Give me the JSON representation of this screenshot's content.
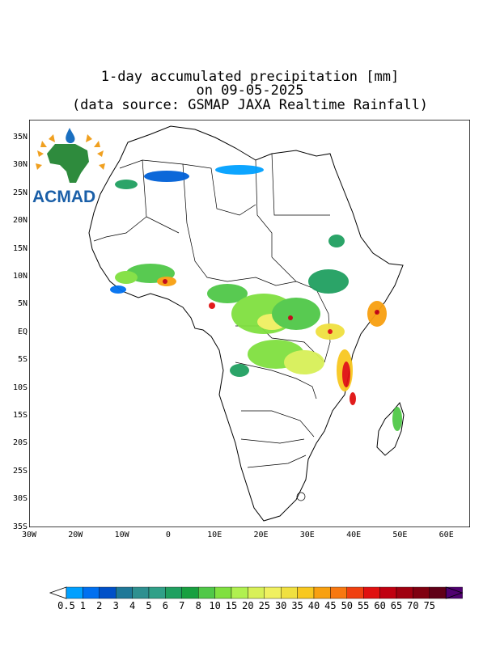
{
  "title": {
    "line1": "1-day accumulated precipitation [mm]",
    "line2": "on 09-05-2025",
    "line3": "(data source: GSMAP JAXA Realtime Rainfall)"
  },
  "logo": {
    "text": "ACMAD",
    "colors": {
      "text": "#1a5fa8",
      "continent": "#2e8b3d",
      "sun": "#f0a020",
      "drop": "#1a6fc0"
    }
  },
  "axes": {
    "lat_labels": [
      "35N",
      "30N",
      "25N",
      "20N",
      "15N",
      "10N",
      "5N",
      "EQ",
      "5S",
      "10S",
      "15S",
      "20S",
      "25S",
      "30S",
      "35S"
    ],
    "lon_labels": [
      "30W",
      "20W",
      "10W",
      "0",
      "10E",
      "20E",
      "30E",
      "40E",
      "50E",
      "60E"
    ]
  },
  "colorbar": {
    "labels": [
      "0.5",
      "1",
      "2",
      "3",
      "4",
      "5",
      "6",
      "7",
      "8",
      "10",
      "15",
      "20",
      "25",
      "30",
      "35",
      "40",
      "45",
      "50",
      "55",
      "60",
      "65",
      "70",
      "75"
    ],
    "colors": [
      "#00a0ff",
      "#0070f0",
      "#0050c8",
      "#1e7898",
      "#2e9090",
      "#30a088",
      "#20a060",
      "#18a040",
      "#50c848",
      "#80e040",
      "#b0f050",
      "#d8f058",
      "#f0f060",
      "#f0e040",
      "#f8c820",
      "#f8a010",
      "#f87810",
      "#f04010",
      "#e01010",
      "#c00010",
      "#a00010",
      "#800010",
      "#600018",
      "#500070"
    ]
  }
}
